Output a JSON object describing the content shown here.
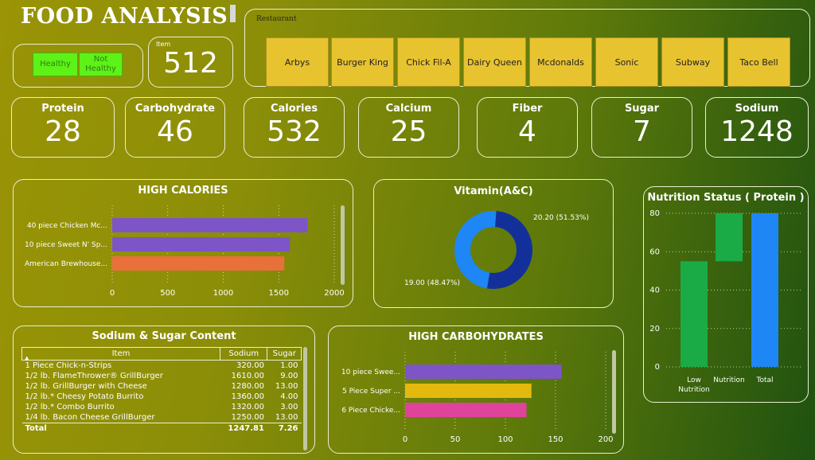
{
  "title": "FOOD ANALYSIS",
  "filters": {
    "healthy": "Healthy",
    "not_healthy": "Not\nHealthy"
  },
  "item_card": {
    "label": "Item",
    "value": "512"
  },
  "restaurant": {
    "label": "Restaurant",
    "options": [
      "Arbys",
      "Burger King",
      "Chick Fil-A",
      "Dairy Queen",
      "Mcdonalds",
      "Sonic",
      "Subway",
      "Taco Bell"
    ]
  },
  "kpis": [
    {
      "label": "Protein",
      "value": "28"
    },
    {
      "label": "Carbohydrate",
      "value": "46"
    },
    {
      "label": "Calories",
      "value": "532"
    },
    {
      "label": "Calcium",
      "value": "25"
    },
    {
      "label": "Fiber",
      "value": "4"
    },
    {
      "label": "Sugar",
      "value": "7"
    },
    {
      "label": "Sodium",
      "value": "1248"
    }
  ],
  "chart_data": [
    {
      "id": "high_calories",
      "type": "bar",
      "orientation": "horizontal",
      "title": "HIGH CALORIES",
      "categories": [
        "40 piece Chicken Mc...",
        "10 piece Sweet N' Sp...",
        "American Brewhouse..."
      ],
      "values": [
        1760,
        1600,
        1550
      ],
      "colors": [
        "#7e55c6",
        "#7e55c6",
        "#e8703a"
      ],
      "xlim": [
        0,
        2000
      ],
      "xticks": [
        0,
        500,
        1000,
        1500,
        2000
      ]
    },
    {
      "id": "vitamin",
      "type": "pie",
      "donut": true,
      "title": "Vitamin(A&C)",
      "values": [
        20.2,
        19.0
      ],
      "labels": [
        "20.20 (51.53%)",
        "19.00 (48.47%)"
      ],
      "colors": [
        "#13309a",
        "#1e86f5"
      ]
    },
    {
      "id": "nutrition_status",
      "type": "waterfall",
      "title": "Nutrition Status ( Protein )",
      "categories": [
        "Low\nNutrition",
        "Nutrition",
        "Total"
      ],
      "values": [
        55,
        25,
        80
      ],
      "colors": [
        "#1aab46",
        "#1aab46",
        "#1e86f5"
      ],
      "ylim": [
        0,
        80
      ],
      "yticks": [
        0,
        20,
        40,
        60,
        80
      ]
    },
    {
      "id": "high_carbohydrates",
      "type": "bar",
      "orientation": "horizontal",
      "title": "HIGH CARBOHYDRATES",
      "categories": [
        "10 piece Swee...",
        "5 Piece Super ...",
        "6 Piece Chicke..."
      ],
      "values": [
        156,
        126,
        121
      ],
      "colors": [
        "#7e55c6",
        "#e4b90e",
        "#e0439c"
      ],
      "xlim": [
        0,
        200
      ],
      "xticks": [
        0,
        50,
        100,
        150,
        200
      ]
    },
    {
      "id": "sodium_sugar",
      "type": "table",
      "title": "Sodium & Sugar Content",
      "columns": [
        "Item",
        "Sodium",
        "Sugar"
      ],
      "rows": [
        [
          "1 Piece Chick-n-Strips",
          "320.00",
          "1.00"
        ],
        [
          "1/2 lb. FlameThrower® GrillBurger",
          "1610.00",
          "9.00"
        ],
        [
          "1/2 lb. GrillBurger with Cheese",
          "1280.00",
          "13.00"
        ],
        [
          "1/2 lb.* Cheesy Potato Burrito",
          "1360.00",
          "4.00"
        ],
        [
          "1/2 lb.* Combo Burrito",
          "1320.00",
          "3.00"
        ],
        [
          "1/4 lb. Bacon Cheese GrillBurger",
          "1250.00",
          "13.00"
        ]
      ],
      "total": [
        "Total",
        "1247.81",
        "7.26"
      ]
    }
  ]
}
